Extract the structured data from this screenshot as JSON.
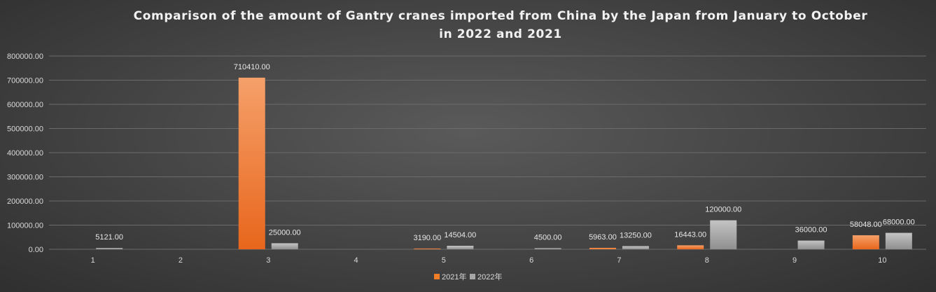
{
  "chart_data": {
    "type": "bar",
    "title_lines": [
      "Comparison of the amount of Gantry cranes imported from China by the Japan from January to October",
      "in 2022 and 2021"
    ],
    "xlabel": "",
    "ylabel": "",
    "categories": [
      "1",
      "2",
      "3",
      "4",
      "5",
      "6",
      "7",
      "8",
      "9",
      "10"
    ],
    "ylim": [
      0,
      800000
    ],
    "yticks": [
      "0.00",
      "100000.00",
      "200000.00",
      "300000.00",
      "400000.00",
      "500000.00",
      "600000.00",
      "700000.00",
      "800000.00"
    ],
    "series": [
      {
        "name": "2021年",
        "color": "#f07d2a",
        "values": [
          null,
          null,
          710410,
          null,
          3190,
          null,
          5963,
          16443,
          null,
          58048
        ],
        "labels": [
          null,
          null,
          "710410.00",
          null,
          "3190.00",
          null,
          "5963.00",
          "16443.00",
          null,
          "58048.00"
        ]
      },
      {
        "name": "2022年",
        "color": "#a6a6a6",
        "values": [
          5121,
          null,
          25000,
          null,
          14504,
          4500,
          13250,
          120000,
          36000,
          68000
        ],
        "labels": [
          "5121.00",
          null,
          "25000.00",
          null,
          "14504.00",
          "4500.00",
          "13250.00",
          "120000.00",
          "36000.00",
          "68000.00"
        ]
      }
    ],
    "grid": true,
    "legend_position": "bottom"
  }
}
